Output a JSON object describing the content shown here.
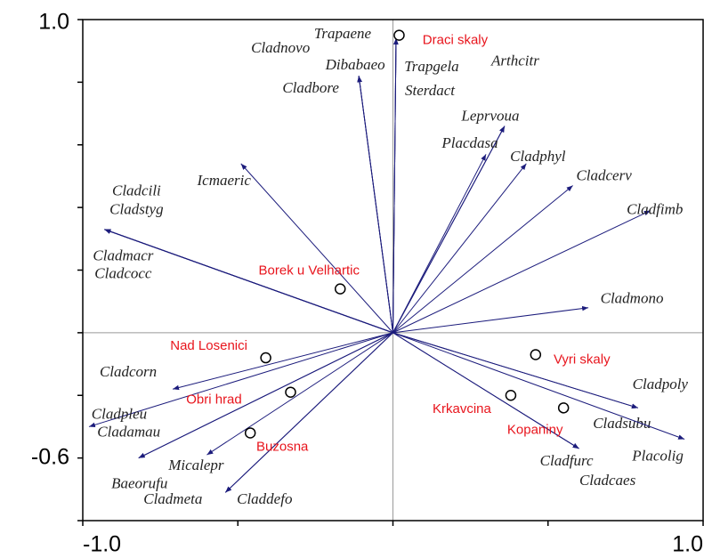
{
  "chart_data": {
    "type": "biplot",
    "xlim": [
      -1,
      1
    ],
    "ylim": [
      -0.6,
      1
    ],
    "xticks": [
      {
        "value": -1,
        "label": "-1.0"
      },
      {
        "value": 1,
        "label": "1.0"
      }
    ],
    "yticks": [
      {
        "value": -0.6,
        "label": "-0.6"
      },
      {
        "value": 1,
        "label": "1.0"
      }
    ],
    "xticks_minor": [
      -1,
      -0.5,
      0,
      0.5,
      1
    ],
    "yticks_minor": [
      -0.6,
      -0.4,
      -0.2,
      0,
      0.2,
      0.4,
      0.6,
      0.8,
      1
    ],
    "zero_lines": true,
    "arrow_color": "#1c1c7c",
    "site_color": "#e8141c",
    "species": [
      {
        "name": "Trapaene",
        "x": 0.01,
        "y": 0.94
      },
      {
        "name": "Cladnovo",
        "x": -0.11,
        "y": 0.82
      },
      {
        "name": "Dibabaeo",
        "x": -0.11,
        "y": 0.82
      },
      {
        "name": "Trapgela",
        "x": 0.01,
        "y": 0.94
      },
      {
        "name": "Arthcitr",
        "x": 0.36,
        "y": 0.66
      },
      {
        "name": "Cladbore",
        "x": -0.11,
        "y": 0.82
      },
      {
        "name": "Sterdact",
        "x": 0.01,
        "y": 0.94
      },
      {
        "name": "Leprvoua",
        "x": 0.36,
        "y": 0.66
      },
      {
        "name": "Placdasa",
        "x": 0.3,
        "y": 0.57
      },
      {
        "name": "Cladphyl",
        "x": 0.43,
        "y": 0.54
      },
      {
        "name": "Cladcerv",
        "x": 0.58,
        "y": 0.47
      },
      {
        "name": "Cladfimb",
        "x": 0.83,
        "y": 0.39
      },
      {
        "name": "Icmaeric",
        "x": -0.49,
        "y": 0.54
      },
      {
        "name": "Cladcili",
        "x": -0.93,
        "y": 0.33
      },
      {
        "name": "Cladstyg",
        "x": -0.93,
        "y": 0.33
      },
      {
        "name": "Cladmacr",
        "x": -0.93,
        "y": 0.33
      },
      {
        "name": "Cladcocc",
        "x": -0.93,
        "y": 0.33
      },
      {
        "name": "Cladmono",
        "x": 0.63,
        "y": 0.08
      },
      {
        "name": "Cladcorn",
        "x": -0.71,
        "y": -0.18
      },
      {
        "name": "Cladpleu",
        "x": -0.98,
        "y": -0.3
      },
      {
        "name": "Cladamau",
        "x": -0.82,
        "y": -0.4
      },
      {
        "name": "Micalepr",
        "x": -0.6,
        "y": -0.39
      },
      {
        "name": "Baeorufu",
        "x": -0.82,
        "y": -0.4
      },
      {
        "name": "Cladmeta",
        "x": -0.54,
        "y": -0.51
      },
      {
        "name": "Claddefo",
        "x": -0.54,
        "y": -0.51
      },
      {
        "name": "Cladpoly",
        "x": 0.79,
        "y": -0.24
      },
      {
        "name": "Cladsubu",
        "x": 0.79,
        "y": -0.24
      },
      {
        "name": "Placolig",
        "x": 0.94,
        "y": -0.34
      },
      {
        "name": "Cladfurc",
        "x": 0.6,
        "y": -0.37
      },
      {
        "name": "Cladcaes",
        "x": 0.6,
        "y": -0.37
      }
    ],
    "sites": [
      {
        "name": "Draci skaly",
        "x": 0.02,
        "y": 0.95
      },
      {
        "name": "Borek u Velhartic",
        "x": -0.17,
        "y": 0.14
      },
      {
        "name": "Nad Losenici",
        "x": -0.41,
        "y": -0.08
      },
      {
        "name": "Obri hrad",
        "x": -0.33,
        "y": -0.19
      },
      {
        "name": "Buzosna",
        "x": -0.46,
        "y": -0.32
      },
      {
        "name": "Vyri skaly",
        "x": 0.46,
        "y": -0.07
      },
      {
        "name": "Krkavcina",
        "x": 0.38,
        "y": -0.2
      },
      {
        "name": "Kopaniny",
        "x": 0.55,
        "y": -0.24
      }
    ]
  }
}
